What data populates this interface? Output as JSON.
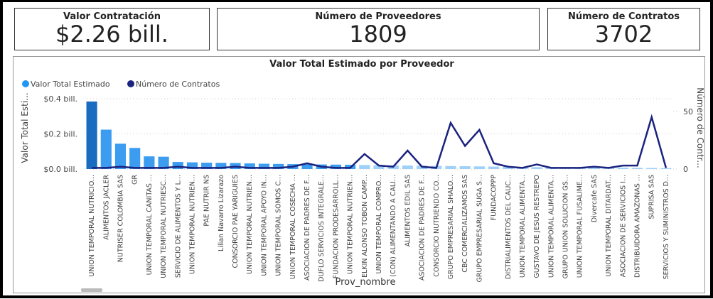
{
  "cards": [
    {
      "title": "Valor Contratación",
      "value": "$2.26 bill."
    },
    {
      "title": "Número de Proveedores",
      "value": 1809
    },
    {
      "title": "Número de Contratos",
      "value": 3702
    }
  ],
  "chart_data": {
    "type": "combo",
    "title": "Valor Total Estimado por Proveedor",
    "xlabel": "Prov_nombre",
    "ylabel": "Valor Total Esti...",
    "y2label": "Número de Contr...",
    "categories": [
      "UNION TEMPORAL NUTRICIO...",
      "ALIMENTOS JACLER",
      "NUTRISER COLOMBIA SAS",
      "GR",
      "UNION TEMPORAL CANITAS ...",
      "UNION TEMPORAL NUTRIESC...",
      "SERVICIO DE ALIMENTOS Y L...",
      "UNION TEMPORAL NUTRIEN...",
      "PAE NUTRIR NS",
      "Lilian Navarro Lizarazo",
      "CONSORCIO PAE YARIGUIES",
      "UNION TEMPORAL NUTRIEN...",
      "UNION TEMPORAL APOYO IN...",
      "UNION TEMPORAL SOMOS C...",
      "UNION TEMPORAL COSECHA ...",
      "ASOCIACION DE PADRES DE F...",
      "DUFLO SERVICIOS INTEGRALE...",
      "FUNDACION PRODESARROLL...",
      "UNION TEMPORAL NUTRIEN...",
      "ELKIN ALONSO TOBON CAMP...",
      "UNION TEMPORAL COMPRO...",
      "(CON) ALIMENTANDO A CALI...",
      "ALIMENTOS EDIL SAS",
      "ASOCIACION DE PADRES DE F...",
      "CONSORCIO NUTRIENDO CO...",
      "GRUPO EMPRESARIAL SHALO...",
      "CBC COMERCIALIZAMOS SAS",
      "GRUPO EMPRESARIAL SUGA S...",
      "FUNDACOPPP",
      "DISTRIALIMENTOS DEL CAUC...",
      "UNION TEMPORAL ALIMENTA...",
      "GUSTAVO DE JESUS RESTREPO",
      "UNION TEMPORAL ALIMENTA...",
      "GRUPO UNION SOLUCION GS...",
      "UNION TEMPORAL FUSALIME...",
      "Divercafe SAS",
      "UNION TEMPORAL DITARDAT...",
      "ASOCIACION DE SERVICIOS I...",
      "DISTRIBUIDORA AMAZONAS ...",
      "SUPRISA SAS",
      "SERVICIOS Y SUMINISTROS D..."
    ],
    "series": [
      {
        "name": "Valor Total Estimado",
        "color": "#2196f3",
        "values": [
          0.384,
          0.224,
          0.144,
          0.12,
          0.072,
          0.07,
          0.04,
          0.038,
          0.036,
          0.035,
          0.034,
          0.032,
          0.03,
          0.029,
          0.028,
          0.027,
          0.026,
          0.025,
          0.024,
          0.023,
          0.022,
          0.021,
          0.02,
          0.019,
          0.018,
          0.017,
          0.016,
          0.015,
          0.014,
          0.013,
          0.012,
          0.011,
          0.011,
          0.01,
          0.01,
          0.009,
          0.008,
          0.008,
          0.007,
          0.006,
          0.005
        ],
        "colors": [
          "#1a6cc0",
          "#3b9cf0",
          "#3b9cf0",
          "#3b9cf0",
          "#3b9cf0",
          "#3b9cf0",
          "#3b9cf0",
          "#3b9cf0",
          "#3b9cf0",
          "#3b9cf0",
          "#3b9cf0",
          "#3b9cf0",
          "#3b9cf0",
          "#3b9cf0",
          "#3b9cf0",
          "#3b9cf0",
          "#3b9cf0",
          "#3b9cf0",
          "#3b9cf0",
          "#9fd0f8",
          "#9fd0f8",
          "#9fd0f8",
          "#9fd0f8",
          "#9fd0f8",
          "#9fd0f8",
          "#9fd0f8",
          "#9fd0f8",
          "#9fd0f8",
          "#9fd0f8",
          "#9fd0f8",
          "#9fd0f8",
          "#9fd0f8",
          "#9fd0f8",
          "#9fd0f8",
          "#9fd0f8",
          "#9fd0f8",
          "#9fd0f8",
          "#9fd0f8",
          "#9fd0f8",
          "#9fd0f8",
          "#9fd0f8"
        ]
      },
      {
        "name": "Número de Contratos",
        "color": "#1a237e",
        "axis": "y2",
        "values": [
          1,
          1,
          2,
          1,
          1,
          1,
          2,
          1,
          1,
          1,
          2,
          1,
          1,
          1,
          2,
          5,
          2,
          1,
          1,
          13,
          3,
          2,
          16,
          2,
          1,
          40,
          20,
          34,
          5,
          2,
          1,
          4,
          1,
          1,
          1,
          2,
          1,
          3,
          3,
          45,
          1
        ]
      }
    ],
    "ylim": [
      0,
      0.42
    ],
    "yticks": [
      {
        "value": 0,
        "label": "$0.0 bill."
      },
      {
        "value": 0.2,
        "label": "$0.2 bill."
      },
      {
        "value": 0.4,
        "label": "$0.4 bill."
      }
    ],
    "y2lim": [
      0,
      64
    ],
    "y2ticks": [
      0,
      50
    ],
    "grid": true,
    "legend": "top-left"
  }
}
